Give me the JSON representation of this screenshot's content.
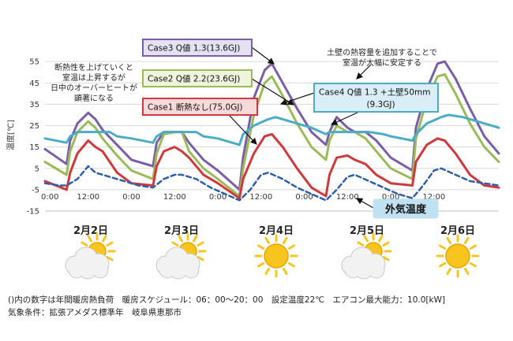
{
  "chart_data": {
    "type": "line",
    "title": "",
    "ylabel": "温度[℃]",
    "xlabel": "",
    "ylim": [
      -15,
      58
    ],
    "yticks": [
      -15,
      -5,
      5,
      15,
      25,
      35,
      45,
      55
    ],
    "x_tick_labels": [
      "0:00",
      "12:00",
      "0:00",
      "12:00",
      "0:00",
      "12:00",
      "0:00",
      "12:00",
      "0:00",
      "12:00"
    ],
    "x_unit": "hours from 2/2 0:00",
    "x_range": [
      0,
      126
    ],
    "grid": "horizontal",
    "series": [
      {
        "name": "Case3 Q値 1.3(13.6GJ)",
        "color": "#7b5ea7",
        "x": [
          0,
          6,
          7,
          9,
          12,
          14,
          16,
          20,
          24,
          30,
          31,
          33,
          36,
          38,
          40,
          44,
          48,
          54,
          55,
          58,
          61,
          63,
          66,
          70,
          74,
          78,
          79,
          81,
          84,
          86,
          89,
          92,
          96,
          102,
          103,
          106,
          109,
          111,
          114,
          118,
          122,
          126
        ],
        "y": [
          14,
          7,
          18,
          26,
          31,
          28,
          23,
          16,
          9,
          6,
          17,
          22,
          22,
          22,
          17,
          9,
          4,
          -5,
          10,
          38,
          51,
          54,
          45,
          33,
          22,
          16,
          22,
          29,
          24,
          22,
          22,
          18,
          10,
          4,
          24,
          42,
          54,
          55,
          47,
          33,
          20,
          12
        ]
      },
      {
        "name": "Case2 Q値 2.2(23.6GJ)",
        "color": "#9bbb59",
        "x": [
          0,
          6,
          7,
          9,
          12,
          14,
          16,
          20,
          24,
          30,
          31,
          33,
          36,
          38,
          40,
          44,
          48,
          54,
          55,
          58,
          61,
          63,
          66,
          70,
          74,
          78,
          79,
          81,
          84,
          86,
          89,
          92,
          96,
          102,
          103,
          106,
          109,
          111,
          114,
          118,
          122,
          126
        ],
        "y": [
          8,
          2,
          13,
          22,
          27,
          24,
          19,
          11,
          4,
          0,
          12,
          21,
          22,
          22,
          13,
          5,
          0,
          -8,
          5,
          30,
          45,
          48,
          39,
          26,
          15,
          9,
          18,
          25,
          22,
          22,
          19,
          13,
          5,
          0,
          19,
          37,
          48,
          49,
          40,
          26,
          15,
          8
        ]
      },
      {
        "name": "Case1 断熱なし(75.0GJ)",
        "color": "#d0393b",
        "x": [
          0,
          6,
          7,
          9,
          12,
          14,
          16,
          20,
          24,
          30,
          31,
          33,
          36,
          38,
          40,
          44,
          48,
          54,
          55,
          58,
          61,
          63,
          66,
          70,
          74,
          78,
          79,
          81,
          84,
          86,
          89,
          92,
          96,
          102,
          103,
          106,
          109,
          111,
          114,
          118,
          122,
          126
        ],
        "y": [
          -1,
          -5,
          3,
          12,
          18,
          15,
          13,
          3,
          -2,
          -3,
          6,
          13,
          15,
          13,
          10,
          2,
          -2,
          -9,
          0,
          12,
          20,
          21,
          15,
          5,
          -4,
          -8,
          2,
          10,
          11,
          9,
          7,
          2,
          -2,
          -3,
          8,
          16,
          19,
          18,
          12,
          2,
          -3,
          -4
        ]
      },
      {
        "name": "Case4 Q値 1.3 +土壁50mm(9.3GJ)",
        "color": "#4bacc6",
        "x": [
          0,
          6,
          7,
          9,
          14,
          18,
          20,
          24,
          30,
          31,
          33,
          38,
          42,
          44,
          48,
          54,
          55,
          58,
          62,
          64,
          66,
          70,
          74,
          78,
          79,
          81,
          86,
          90,
          94,
          96,
          102,
          103,
          106,
          110,
          112,
          116,
          120,
          126
        ],
        "y": [
          19,
          17,
          20,
          22,
          22,
          22,
          20,
          19,
          17,
          20,
          22,
          22,
          22,
          20,
          19,
          16,
          21,
          25,
          28,
          29,
          28,
          26,
          24,
          21,
          22,
          22,
          22,
          22,
          21,
          20,
          18,
          21,
          26,
          29,
          30,
          29,
          27,
          24
        ]
      },
      {
        "name": "外気温度",
        "color": "#2e5fa8",
        "dashed": true,
        "x": [
          0,
          4,
          6,
          9,
          12,
          14,
          18,
          22,
          26,
          30,
          33,
          36,
          38,
          42,
          46,
          50,
          54,
          57,
          60,
          62,
          66,
          70,
          74,
          78,
          81,
          84,
          86,
          90,
          94,
          98,
          102,
          105,
          108,
          110,
          114,
          118,
          122,
          126
        ],
        "y": [
          -2,
          -3,
          -3,
          0,
          6,
          3,
          1,
          -1,
          -3,
          -4,
          0,
          2,
          2,
          0,
          -4,
          -7,
          -10,
          -5,
          2,
          3,
          0,
          -4,
          -7,
          -10,
          -5,
          1,
          2,
          -1,
          -4,
          -7,
          -9,
          -3,
          4,
          5,
          2,
          -1,
          -2,
          -3
        ]
      }
    ],
    "legend_boxes": [
      {
        "text": "Case3 Q値 1.3(13.6GJ)",
        "border": "#7b5ea7",
        "fill": "#e6e0f3"
      },
      {
        "text": "Case2 Q値 2.2(23.6GJ)",
        "border": "#9bbb59",
        "fill": "#eef5dc"
      },
      {
        "text": "Case1 断熱なし(75.0GJ)",
        "border": "#d0393b",
        "fill": "#f8d9d9"
      },
      {
        "text": "Case4 Q値 1.3 +土壁50mm",
        "text2": "(9.3GJ)",
        "border": "#4bacc6",
        "fill": "#d9eef6"
      }
    ],
    "outdoor_label": "外気温度",
    "annotations": [
      {
        "id": "left",
        "lines": [
          "断熱性を上げていくと",
          "室温は上昇するが",
          "日中のオーバーヒートが",
          "顕著になる"
        ]
      },
      {
        "id": "top",
        "lines": [
          "土壁の熱容量を追加することで",
          "室温が大幅に安定する"
        ]
      }
    ],
    "dates": [
      "2月2日",
      "2月3日",
      "2月4日",
      "2月5日",
      "2月6日"
    ],
    "weather": [
      "partly-cloudy",
      "partly-cloudy",
      "sunny",
      "partly-cloudy",
      "sunny"
    ]
  },
  "footnote": {
    "line1": "()内の数字は年間暖房熱負荷　暖房スケジュール：06：00～20：00　設定温度22℃　エアコン最大能力：10.0[kW]",
    "line2": "気象条件：拡張アメダス標準年　岐阜県恵那市"
  },
  "colors": {
    "sun": "#f7c51d",
    "sun_stroke": "#e6a700",
    "cloud": "#f2f2f2",
    "cloud_stroke": "#c9c9c9"
  }
}
